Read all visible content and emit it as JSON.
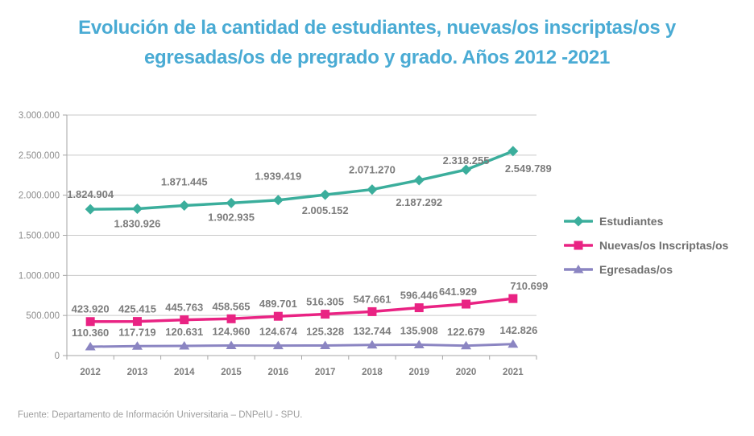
{
  "page": {
    "background": "#ffffff"
  },
  "title": {
    "line1": "Evolución de la cantidad de estudiantes, nuevas/os inscriptas/os y",
    "line2": "egresadas/os de pregrado y grado. Años 2012 -2021",
    "color": "#4AABD4"
  },
  "footer": {
    "text": "Fuente: Departamento de Información Universitaria – DNPeIU - SPU."
  },
  "colors": {
    "title_blue": "#4AABD4",
    "data_label_gray": "#7C7C7C",
    "y_tick_gray": "#8C8C8C",
    "x_tick_gray": "#7D7D7D",
    "gridline_gray": "#CACACA",
    "axis_gray": "#A6A6A6",
    "legend_text_gray": "#6E6E6E",
    "footer_gray": "#9D9D9D"
  },
  "chart_data": {
    "type": "line",
    "title": "Evolución de la cantidad de estudiantes, nuevas/os inscriptas/os y egresadas/os de pregrado y grado. Años 2012 -2021",
    "categories": [
      "2012",
      "2013",
      "2014",
      "2015",
      "2016",
      "2017",
      "2018",
      "2019",
      "2020",
      "2021"
    ],
    "y_axis": {
      "min": 0,
      "max": 3000000,
      "step": 500000,
      "tick_format": "thousands-dot"
    },
    "grid": true,
    "legend_position": "right",
    "series": [
      {
        "name": "Estudiantes",
        "color": "#3BAE9C",
        "marker": "diamond",
        "line_width": 3.5,
        "values": [
          1824904,
          1830926,
          1871445,
          1902935,
          1939419,
          2005152,
          2071270,
          2187292,
          2318255,
          2549789
        ],
        "label_side": [
          "above",
          "below",
          "above",
          "below",
          "above",
          "below",
          "above",
          "below",
          "above",
          "below"
        ],
        "label_gap_above": 20,
        "label_gap_below": 24,
        "label_dx": [
          0,
          0,
          0,
          0,
          0,
          0,
          0,
          0,
          0,
          19
        ],
        "label_dy": [
          6,
          -1,
          -5,
          -2,
          -5,
          0,
          0,
          8,
          13,
          2
        ]
      },
      {
        "name": "Nuevas/os Inscriptas/os",
        "color": "#E92383",
        "marker": "square",
        "line_width": 3.5,
        "values": [
          423920,
          425415,
          445763,
          458565,
          489701,
          516305,
          547661,
          596446,
          641929,
          710699
        ],
        "label_side": [
          "above",
          "above",
          "above",
          "above",
          "above",
          "above",
          "above",
          "above",
          "above",
          "above"
        ],
        "label_gap_above": 11,
        "label_gap_below": 24,
        "label_dx": [
          0,
          0,
          0,
          0,
          0,
          0,
          0,
          0,
          -10,
          20
        ],
        "label_dy": [
          0,
          0,
          0,
          0,
          0,
          0,
          0,
          0,
          0,
          0
        ]
      },
      {
        "name": "Egresadas/os",
        "color": "#8B85C2",
        "marker": "triangle",
        "line_width": 3,
        "values": [
          110360,
          117719,
          120631,
          124960,
          124674,
          125328,
          132744,
          135908,
          122679,
          142826
        ],
        "label_side": [
          "above",
          "above",
          "above",
          "above",
          "above",
          "above",
          "above",
          "above",
          "above",
          "above"
        ],
        "label_gap_above": 13,
        "label_gap_below": 24,
        "label_dx": [
          0,
          0,
          0,
          0,
          0,
          0,
          0,
          0,
          0,
          7
        ],
        "label_dy": [
          0,
          0,
          0,
          0,
          0,
          0,
          0,
          0,
          0,
          0
        ]
      }
    ]
  }
}
